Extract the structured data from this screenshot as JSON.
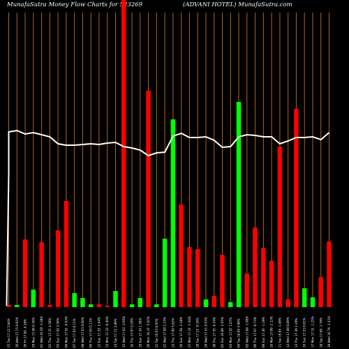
{
  "header": {
    "left": "MunafaSutra  Money Flow  Charts for 523269",
    "right": "(ADVANI HOTEL) MunafaSutra.com"
  },
  "chart_data": {
    "type": "bar",
    "ylim": [
      0,
      440
    ],
    "line_ylim": [
      0,
      440
    ],
    "grid": true,
    "colors": {
      "up": "#00ff00",
      "down": "#ff0000",
      "line": "#ffffff",
      "grid": "#b5651d",
      "background": "#000000"
    },
    "bars": [
      {
        "label": "25 Tue 17.12 5.84%",
        "value": 3,
        "color": "red"
      },
      {
        "label": "26 Wed 17.75 0.92%",
        "value": 3,
        "color": "green"
      },
      {
        "label": "26 Fri 17.00 -4.28%",
        "value": 97,
        "color": "red"
      },
      {
        "label": "29 Mon 17.06 0.35%",
        "value": 25,
        "color": "green"
      },
      {
        "label": "01 Wed 16.50 -3.28%",
        "value": 93,
        "color": "red"
      },
      {
        "label": "02 Thu 17.21 4.30%",
        "value": 3,
        "color": "red"
      },
      {
        "label": "05 Sun 17.50 3.59%",
        "value": 110,
        "color": "red"
      },
      {
        "label": "06 Mon 17.61 -0.63%",
        "value": 152,
        "color": "red"
      },
      {
        "label": "07 Tue 17.63 0.11%",
        "value": 20,
        "color": "green"
      },
      {
        "label": "08 Wed 17.63 0.00%",
        "value": 13,
        "color": "green"
      },
      {
        "label": "09 Thu 17.65 0.11%",
        "value": 4,
        "color": "green"
      },
      {
        "label": "12 Sun 17.29 -2.04%",
        "value": 4,
        "color": "red"
      },
      {
        "label": "13 Mon 17.22 -0.40%",
        "value": 2,
        "color": "red"
      },
      {
        "label": "14 Tue 17.72 2.89%",
        "value": 23,
        "color": "green"
      },
      {
        "label": "15 Wed 17.02 -3.95%",
        "value": 440,
        "color": "red"
      },
      {
        "label": "16 Thu 17.07 0.29%",
        "value": 4,
        "color": "green"
      },
      {
        "label": "19 Sun 17.34 1.58%",
        "value": 13,
        "color": "green"
      },
      {
        "label": "20 Mon 16.47 -5.02%",
        "value": 310,
        "color": "red"
      },
      {
        "label": "21 Tue 16.63 0.97%",
        "value": 4,
        "color": "green"
      },
      {
        "label": "22 Wed 17.00 2.23%",
        "value": 98,
        "color": "green"
      },
      {
        "label": "23 Thu 17.99 5.82%",
        "value": 269,
        "color": "green"
      },
      {
        "label": "26 Sun 17.58 -2.28%",
        "value": 147,
        "color": "red"
      },
      {
        "label": "27 Mon 17.31 -1.54%",
        "value": 86,
        "color": "red"
      },
      {
        "label": "28 Tue 17.25 -0.35%",
        "value": 83,
        "color": "red"
      },
      {
        "label": "29 Wed 17.41 0.93%",
        "value": 11,
        "color": "green"
      },
      {
        "label": "30 Thu 17.35 -0.34%",
        "value": 16,
        "color": "red"
      },
      {
        "label": "02 Sun 16.89 -2.65%",
        "value": 75,
        "color": "red"
      },
      {
        "label": "03 Mon 17.07 1.07%",
        "value": 7,
        "color": "green"
      },
      {
        "label": "04 Tue 18.09 5.98%",
        "value": 294,
        "color": "green"
      },
      {
        "label": "05 Wed 17.80 -1.60%",
        "value": 48,
        "color": "red"
      },
      {
        "label": "06 Thu 17.67 -0.73%",
        "value": 114,
        "color": "red"
      },
      {
        "label": "09 Sun 17.46 -1.19%",
        "value": 85,
        "color": "red"
      },
      {
        "label": "10 Mon 17.09 -2.12%",
        "value": 66,
        "color": "red"
      },
      {
        "label": "11 Tue 16.85 -1.40%",
        "value": 230,
        "color": "red"
      },
      {
        "label": "12 Wed 17.00 0.89%",
        "value": 11,
        "color": "red"
      },
      {
        "label": "13 Thu 17.39 2.29%",
        "value": 284,
        "color": "red"
      },
      {
        "label": "16 Sun 17.53 0.81%",
        "value": 27,
        "color": "green"
      },
      {
        "label": "17 Mon 17.31 -1.25%",
        "value": 14,
        "color": "green"
      },
      {
        "label": "18 Tue 17.00 -1.79%",
        "value": 43,
        "color": "red"
      },
      {
        "label": "19 Wed 16.76 -1.41%",
        "value": 94,
        "color": "red"
      }
    ],
    "line": [
      251,
      253,
      248,
      250,
      247,
      244,
      234,
      232,
      232,
      233,
      234,
      233,
      235,
      236,
      230,
      228,
      225,
      217,
      221,
      222,
      245,
      249,
      243,
      243,
      244,
      239,
      229,
      230,
      244,
      247,
      246,
      244,
      244,
      234,
      238,
      243,
      243,
      244,
      240,
      250
    ]
  }
}
